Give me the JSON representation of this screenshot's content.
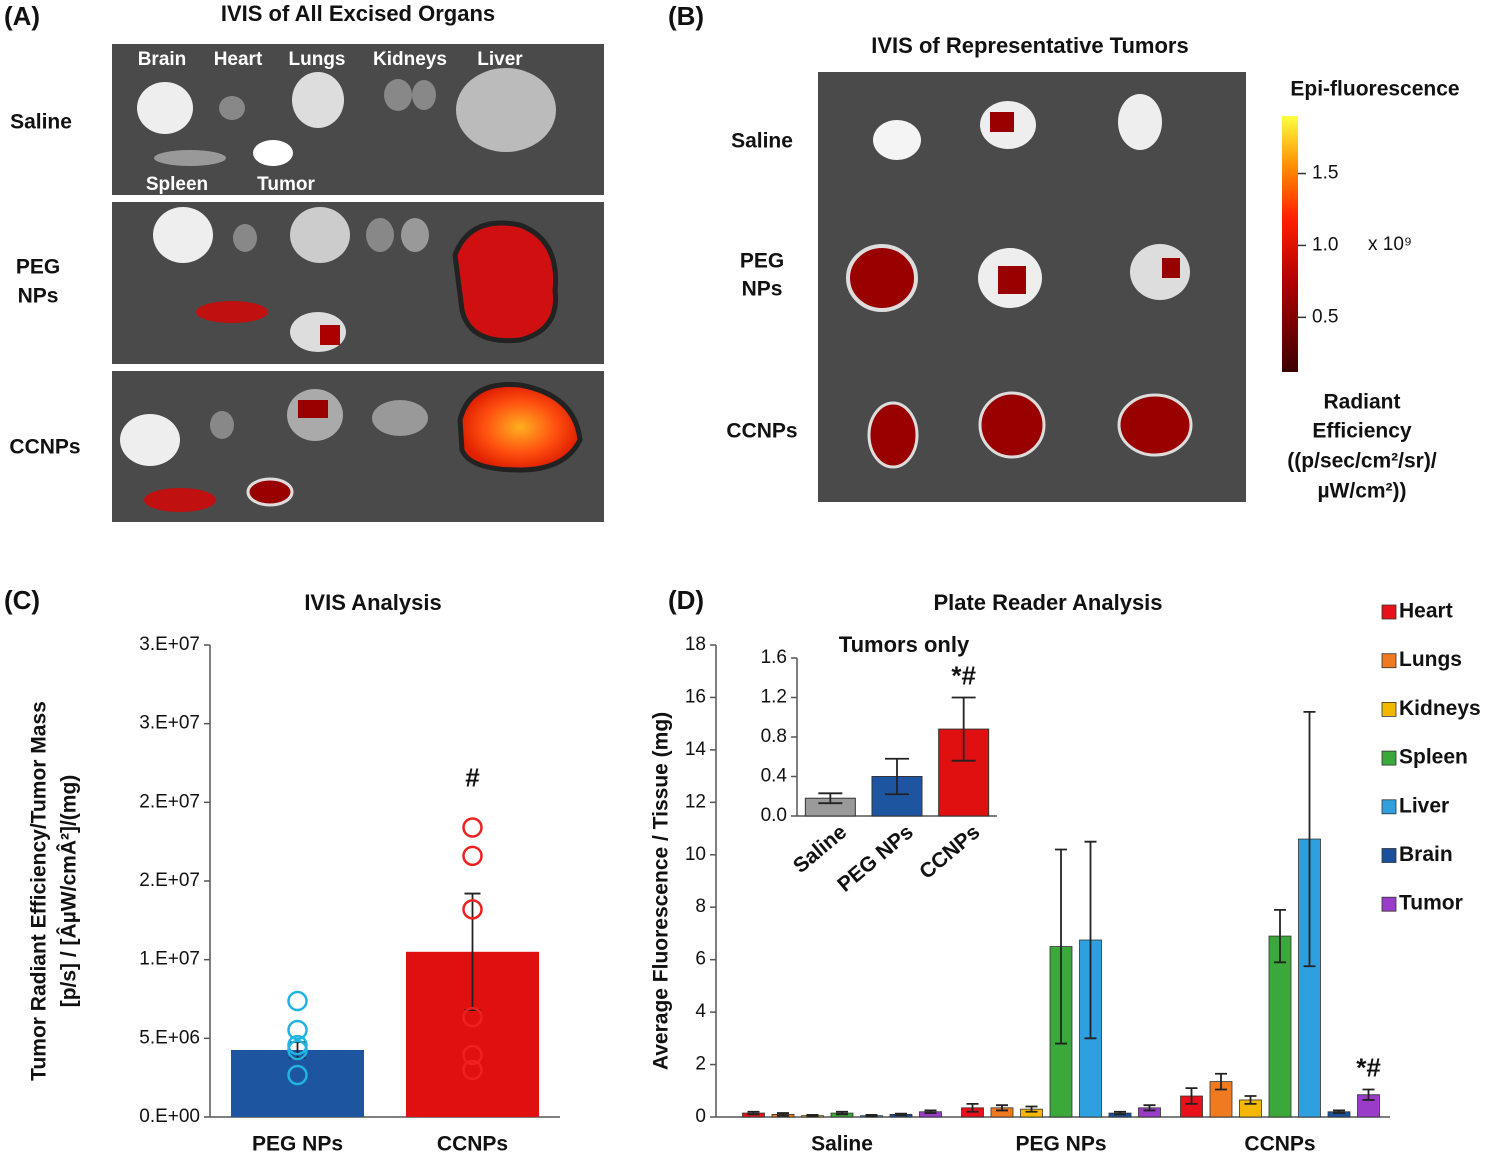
{
  "panel_labels": [
    "(C)",
    "(D)"
  ],
  "images": {
    "a": {
      "label": "(A)",
      "title": "IVIS of All Excised Organs",
      "organs": [
        "Brain",
        "Heart",
        "Lungs",
        "Kidneys",
        "Liver",
        "Spleen",
        "Tumor"
      ],
      "rows": [
        [
          "Saline"
        ],
        [
          "PEG",
          "NPs"
        ],
        [
          "CCNPs"
        ]
      ]
    },
    "b": {
      "label": "(B)",
      "title": "IVIS of Representative Tumors",
      "rows": [
        [
          "Saline"
        ],
        [
          "PEG",
          "NPs"
        ],
        [
          "CCNPs"
        ]
      ]
    }
  },
  "colorbar": {
    "title": "Epi-fluorescence",
    "lim": [
      0.12,
      1.9
    ],
    "ticks": [
      0.5,
      {
        "value": 1,
        "label": "1.0"
      },
      1.5
    ],
    "multiplier": "x 10⁹",
    "label": [
      "Radiant",
      "Efficiency",
      "((p/sec/cm²/sr)/",
      "µW/cm²))"
    ]
  },
  "chart_data": [
    {
      "type": "bar",
      "title": "IVIS Analysis",
      "ylabel": [
        "Tumor Radiant Efficiency/Tumor Mass",
        "[p/s] / [ÂµW/cmÂ²]/(mg)"
      ],
      "categories": [
        "PEG NPs",
        "CCNPs"
      ],
      "values": [
        4260000,
        10500000
      ],
      "errors": [
        500000,
        3700000
      ],
      "colors": [
        "#1d55a0",
        "#e01010"
      ],
      "point_colors": [
        "#22b4e0",
        "#ee2020"
      ],
      "points": [
        [
          7370000,
          5530000,
          4570000,
          4260000,
          2670000
        ],
        [
          18400000,
          16600000,
          13200000,
          6350000,
          3940000,
          2990000
        ]
      ],
      "annotation": "#",
      "ylim": [
        0,
        30000000
      ],
      "yticks": [
        {
          "value": 0,
          "label": "0.E+00"
        },
        {
          "value": 5000000,
          "label": "5.E+06"
        },
        {
          "value": 10000000,
          "label": "1.E+07"
        },
        {
          "value": 15000000,
          "label": "2.E+07"
        },
        {
          "value": 20000000,
          "label": "2.E+07"
        },
        {
          "value": 25000000,
          "label": "3.E+07"
        },
        {
          "value": 30000000,
          "label": "3.E+07"
        }
      ]
    },
    {
      "type": "grouped_bar",
      "title": "Plate Reader Analysis",
      "ylabel": "Average Fluorescence / Tissue (mg)",
      "categories": [
        "Saline",
        "PEG NPs",
        "CCNPs"
      ],
      "series": [
        {
          "name": "Heart",
          "color": "#e8101a",
          "values": [
            0.15,
            0.35,
            0.8
          ],
          "errors": [
            0.05,
            0.15,
            0.3
          ]
        },
        {
          "name": "Lungs",
          "color": "#f07a20",
          "values": [
            0.1,
            0.35,
            1.35
          ],
          "errors": [
            0.05,
            0.1,
            0.3
          ]
        },
        {
          "name": "Kidneys",
          "color": "#f5b800",
          "values": [
            0.05,
            0.3,
            0.65
          ],
          "errors": [
            0.03,
            0.1,
            0.15
          ]
        },
        {
          "name": "Spleen",
          "color": "#3aa83a",
          "values": [
            0.15,
            6.5,
            6.9
          ],
          "errors": [
            0.05,
            3.7,
            1.0
          ]
        },
        {
          "name": "Liver",
          "color": "#2ea0e0",
          "values": [
            0.05,
            6.75,
            10.6
          ],
          "errors": [
            0.03,
            3.75,
            4.85
          ]
        },
        {
          "name": "Brain",
          "color": "#1a4f9c",
          "values": [
            0.1,
            0.15,
            0.2
          ],
          "errors": [
            0.03,
            0.05,
            0.05
          ]
        },
        {
          "name": "Tumor",
          "color": "#9a3cc8",
          "values": [
            0.2,
            0.35,
            0.85
          ],
          "errors": [
            0.05,
            0.1,
            0.2
          ]
        }
      ],
      "annotation": "*#",
      "ylim": [
        0,
        18
      ],
      "yticks": [
        0,
        2,
        4,
        6,
        8,
        10,
        12,
        14,
        16,
        18
      ],
      "legend": "right"
    },
    {
      "type": "bar",
      "title": "Tumors only",
      "categories": [
        "Saline",
        "PEG NPs",
        "CCNPs"
      ],
      "values": [
        0.18,
        0.4,
        0.88
      ],
      "errors": [
        0.05,
        0.18,
        0.32
      ],
      "colors": [
        "#9a9a9a",
        "#1d55a0",
        "#e01010"
      ],
      "annotation": "*#",
      "ylim": [
        0,
        1.6
      ],
      "yticks": [
        {
          "value": 0,
          "label": "0.0"
        },
        0.4,
        0.8,
        1.2,
        1.6
      ]
    }
  ]
}
